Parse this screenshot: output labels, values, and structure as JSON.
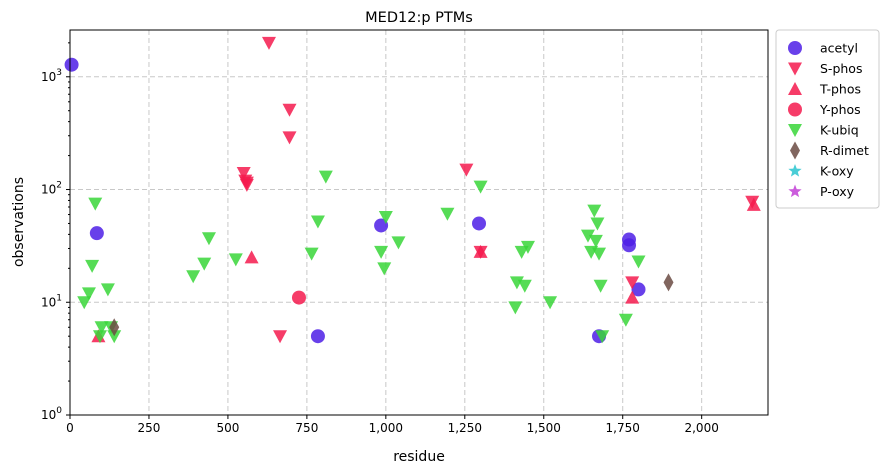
{
  "chart_data": {
    "type": "scatter",
    "title": "MED12:p PTMs",
    "xlabel": "residue",
    "ylabel": "observations",
    "xlim": [
      0,
      2210
    ],
    "ylim": [
      1,
      2600
    ],
    "yscale": "log",
    "x_ticks": [
      0,
      250,
      500,
      750,
      1000,
      1250,
      1500,
      1750,
      2000
    ],
    "x_tick_labels": [
      "0",
      "250",
      "500",
      "750",
      "1,000",
      "1,250",
      "1,500",
      "1,750",
      "2,000"
    ],
    "y_ticks": [
      1,
      10,
      100,
      1000
    ],
    "y_tick_labels": [
      "10^0",
      "10^1",
      "10^2",
      "10^3"
    ],
    "grid": true,
    "legend_position": "outside-right",
    "series": [
      {
        "name": "acetyl",
        "marker": "circle",
        "color": "#4d1fe6",
        "points": [
          [
            5,
            1280
          ],
          [
            85,
            41
          ],
          [
            785,
            5
          ],
          [
            985,
            48
          ],
          [
            1295,
            50
          ],
          [
            1770,
            36
          ],
          [
            1770,
            32
          ],
          [
            1800,
            13
          ],
          [
            1675,
            5
          ]
        ]
      },
      {
        "name": "S-phos",
        "marker": "triangle-down",
        "color": "#f51a4d",
        "points": [
          [
            630,
            2000
          ],
          [
            695,
            510
          ],
          [
            695,
            290
          ],
          [
            550,
            140
          ],
          [
            555,
            120
          ],
          [
            560,
            115
          ],
          [
            560,
            110
          ],
          [
            665,
            5
          ],
          [
            1255,
            150
          ],
          [
            1300,
            28
          ],
          [
            1780,
            15
          ],
          [
            2160,
            78
          ]
        ]
      },
      {
        "name": "T-phos",
        "marker": "triangle-up",
        "color": "#f51a4d",
        "points": [
          [
            90,
            5
          ],
          [
            575,
            25
          ],
          [
            1300,
            28
          ],
          [
            1780,
            11
          ],
          [
            2165,
            73
          ]
        ]
      },
      {
        "name": "Y-phos",
        "marker": "circle",
        "color": "#f51a4d",
        "points": [
          [
            725,
            11
          ]
        ]
      },
      {
        "name": "K-ubiq",
        "marker": "triangle-down",
        "color": "#38d638",
        "points": [
          [
            45,
            10
          ],
          [
            60,
            12
          ],
          [
            70,
            21
          ],
          [
            80,
            75
          ],
          [
            95,
            5
          ],
          [
            100,
            6
          ],
          [
            120,
            13
          ],
          [
            130,
            6
          ],
          [
            140,
            5
          ],
          [
            390,
            17
          ],
          [
            425,
            22
          ],
          [
            440,
            37
          ],
          [
            525,
            24
          ],
          [
            765,
            27
          ],
          [
            785,
            52
          ],
          [
            810,
            130
          ],
          [
            985,
            28
          ],
          [
            995,
            20
          ],
          [
            1000,
            57
          ],
          [
            1040,
            34
          ],
          [
            1195,
            61
          ],
          [
            1300,
            106
          ],
          [
            1410,
            9
          ],
          [
            1415,
            15
          ],
          [
            1430,
            28
          ],
          [
            1440,
            14
          ],
          [
            1450,
            31
          ],
          [
            1520,
            10
          ],
          [
            1640,
            39
          ],
          [
            1650,
            28
          ],
          [
            1660,
            65
          ],
          [
            1665,
            35
          ],
          [
            1670,
            50
          ],
          [
            1675,
            27
          ],
          [
            1680,
            14
          ],
          [
            1685,
            5
          ],
          [
            1760,
            7
          ],
          [
            1800,
            23
          ]
        ]
      },
      {
        "name": "R-dimet",
        "marker": "diamond",
        "color": "#6b4b43",
        "points": [
          [
            140,
            6
          ],
          [
            1895,
            15
          ]
        ]
      },
      {
        "name": "K-oxy",
        "marker": "star",
        "color": "#29c4cf",
        "points": []
      },
      {
        "name": "P-oxy",
        "marker": "star",
        "color": "#c23fd6",
        "points": []
      }
    ]
  }
}
